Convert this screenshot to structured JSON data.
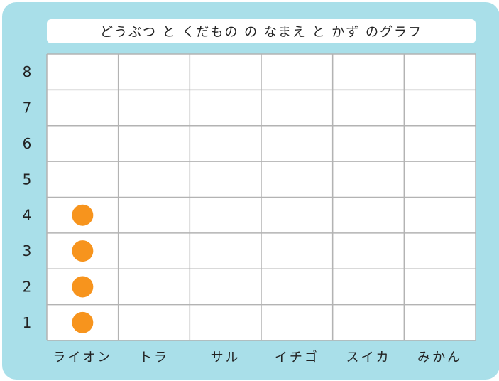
{
  "chart_data": {
    "type": "pictograph",
    "title": "どうぶつ と くだもの の なまえ と かず のグラフ",
    "categories": [
      "ライオン",
      "トラ",
      "サル",
      "イチゴ",
      "スイカ",
      "みかん"
    ],
    "values": [
      4,
      0,
      0,
      0,
      0,
      0
    ],
    "y_ticks": [
      "1",
      "2",
      "3",
      "4",
      "5",
      "6",
      "7",
      "8"
    ],
    "ylim": [
      0,
      8
    ],
    "grid": true,
    "marker_color": "#f7941d",
    "background_color": "#a9dfe9"
  }
}
